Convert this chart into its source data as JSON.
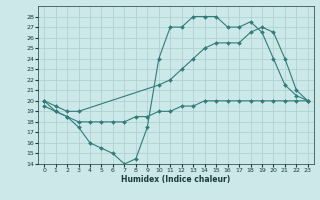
{
  "xlabel": "Humidex (Indice chaleur)",
  "background_color": "#cce8e8",
  "grid_color": "#aacece",
  "line_color": "#2e7d7d",
  "xlim": [
    -0.5,
    23.5
  ],
  "ylim": [
    14,
    29
  ],
  "yticks": [
    14,
    15,
    16,
    17,
    18,
    19,
    20,
    21,
    22,
    23,
    24,
    25,
    26,
    27,
    28
  ],
  "xticks": [
    0,
    1,
    2,
    3,
    4,
    5,
    6,
    7,
    8,
    9,
    10,
    11,
    12,
    13,
    14,
    15,
    16,
    17,
    18,
    19,
    20,
    21,
    22,
    23
  ],
  "line1_x": [
    0,
    1,
    2,
    3,
    4,
    5,
    6,
    7,
    8,
    9,
    10,
    11,
    12,
    13,
    14,
    15,
    16,
    17,
    18,
    19,
    20,
    21,
    22,
    23
  ],
  "line1_y": [
    20.0,
    19.0,
    18.5,
    17.5,
    16.0,
    15.5,
    15.0,
    14.0,
    14.5,
    17.5,
    24.0,
    27.0,
    27.0,
    28.0,
    28.0,
    28.0,
    27.0,
    27.0,
    27.5,
    26.5,
    24.0,
    21.5,
    20.5,
    20.0
  ],
  "line2_x": [
    0,
    1,
    2,
    3,
    10,
    11,
    12,
    13,
    14,
    15,
    16,
    17,
    18,
    19,
    20,
    21,
    22,
    23
  ],
  "line2_y": [
    20.0,
    19.5,
    19.0,
    19.0,
    21.5,
    22.0,
    23.0,
    24.0,
    25.0,
    25.5,
    25.5,
    25.5,
    26.5,
    27.0,
    26.5,
    24.0,
    21.0,
    20.0
  ],
  "line3_x": [
    0,
    1,
    2,
    3,
    4,
    5,
    6,
    7,
    8,
    9,
    10,
    11,
    12,
    13,
    14,
    15,
    16,
    17,
    18,
    19,
    20,
    21,
    22,
    23
  ],
  "line3_y": [
    19.5,
    19.0,
    18.5,
    18.0,
    18.0,
    18.0,
    18.0,
    18.0,
    18.5,
    18.5,
    19.0,
    19.0,
    19.5,
    19.5,
    20.0,
    20.0,
    20.0,
    20.0,
    20.0,
    20.0,
    20.0,
    20.0,
    20.0,
    20.0
  ]
}
